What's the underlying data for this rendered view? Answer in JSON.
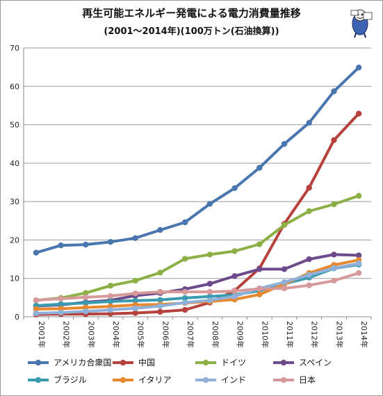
{
  "chart_data": {
    "type": "line",
    "title": "再生可能エネルギー発電による電力消費量推移",
    "subtitle": "(2001～2014年)(100万トン(石油換算))",
    "categories": [
      "2001年",
      "2002年",
      "2003年",
      "2004年",
      "2005年",
      "2006年",
      "2007年",
      "2008年",
      "2009年",
      "2010年",
      "2011年",
      "2012年",
      "2013年",
      "2014年"
    ],
    "ylim": [
      0,
      70
    ],
    "yticks": [
      0,
      10,
      20,
      30,
      40,
      50,
      60,
      70
    ],
    "grid": true,
    "legend_position": "bottom",
    "series": [
      {
        "name": "アメリカ合衆国",
        "color": "#4a76b0",
        "values": [
          16.7,
          18.6,
          18.8,
          19.5,
          20.5,
          22.6,
          24.6,
          29.4,
          33.5,
          38.8,
          45.0,
          50.5,
          58.7,
          64.9
        ]
      },
      {
        "name": "中国",
        "color": "#b7413c",
        "values": [
          0.6,
          0.7,
          0.7,
          0.8,
          1.0,
          1.3,
          1.8,
          3.7,
          6.8,
          12.6,
          24.2,
          33.6,
          46.0,
          52.9
        ]
      },
      {
        "name": "ドイツ",
        "color": "#8cb046",
        "values": [
          4.3,
          4.9,
          6.2,
          8.1,
          9.4,
          11.5,
          15.1,
          16.2,
          17.1,
          18.9,
          23.9,
          27.5,
          29.3,
          31.5
        ]
      },
      {
        "name": "スペイン",
        "color": "#6d4a8c",
        "values": [
          2.8,
          3.1,
          3.8,
          4.3,
          5.5,
          6.2,
          7.2,
          8.6,
          10.6,
          12.4,
          12.4,
          15.0,
          16.2,
          16.0
        ]
      },
      {
        "name": "ブラジル",
        "color": "#3a9bb0",
        "values": [
          2.9,
          3.3,
          3.6,
          4.0,
          4.2,
          4.4,
          4.9,
          5.3,
          5.7,
          6.8,
          8.6,
          10.2,
          12.6,
          13.6
        ]
      },
      {
        "name": "イタリア",
        "color": "#e8882e",
        "values": [
          2.0,
          2.1,
          2.4,
          2.7,
          3.1,
          3.2,
          3.6,
          4.0,
          4.5,
          5.8,
          8.5,
          11.4,
          13.5,
          14.8
        ]
      },
      {
        "name": "インド",
        "color": "#8fb0d8",
        "values": [
          0.9,
          1.1,
          1.4,
          1.8,
          2.2,
          2.8,
          3.7,
          4.3,
          5.3,
          7.4,
          9.0,
          10.9,
          12.7,
          13.9
        ]
      },
      {
        "name": "日本",
        "color": "#d69a9a",
        "values": [
          4.3,
          4.7,
          5.1,
          5.4,
          6.1,
          6.5,
          6.5,
          6.5,
          6.7,
          7.3,
          7.4,
          8.2,
          9.4,
          11.4
        ]
      }
    ]
  },
  "mascot": {
    "icon": "cartoon-mascot-icon"
  }
}
